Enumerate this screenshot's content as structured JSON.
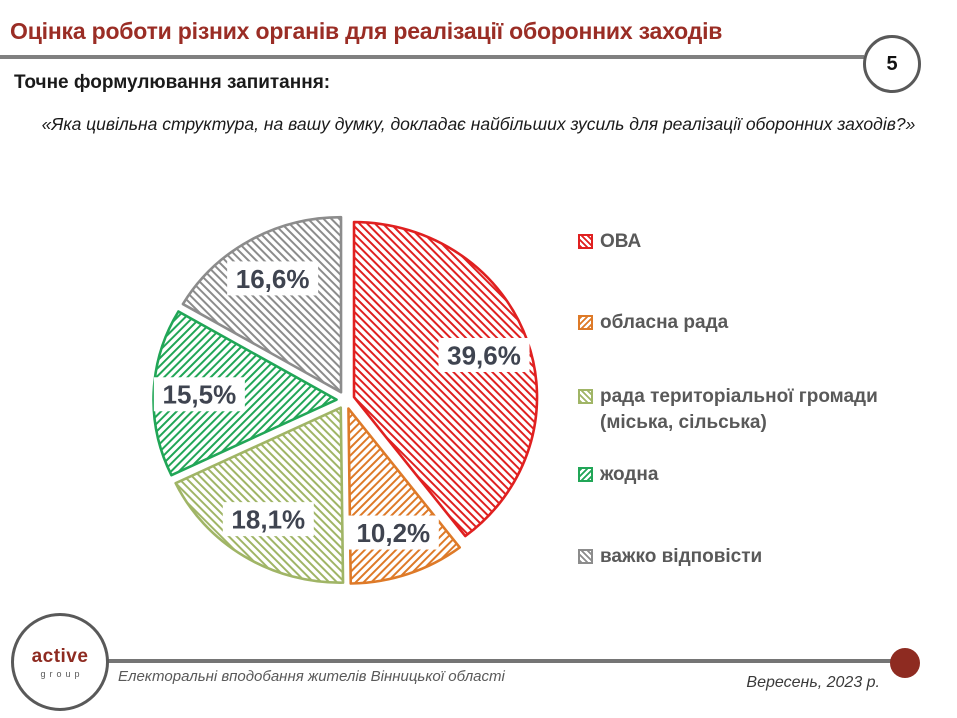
{
  "page": {
    "number": "5"
  },
  "header": {
    "title": "Оцінка роботи різних органів для реалізації оборонних заходів",
    "question_label": "Точне формулювання запитання:",
    "question": "«Яка цивільна структура, на вашу думку, докладає найбільших зусиль для реалізації оборонних заходів?»"
  },
  "chart_data": {
    "type": "pie",
    "title": "Оцінка роботи різних органів для реалізації оборонних заходів",
    "start_angle_deg": 0,
    "direction": "clockwise",
    "legend_position": "right",
    "exploded": true,
    "label_color": "#3F4450",
    "slices": [
      {
        "label": "ОВА",
        "value": 39.6,
        "display": "39,6%",
        "color": "#E02020",
        "hatch": "backslash"
      },
      {
        "label": "обласна рада",
        "value": 10.2,
        "display": "10,2%",
        "color": "#DE7A28",
        "hatch": "slash"
      },
      {
        "label": "рада територіальної громади (міська, сільська)",
        "value": 18.1,
        "display": "18,1%",
        "color": "#A0B566",
        "hatch": "backslash"
      },
      {
        "label": "жодна",
        "value": 15.5,
        "display": "15,5%",
        "color": "#21A657",
        "hatch": "slash"
      },
      {
        "label": "важко відповісти",
        "value": 16.6,
        "display": "16,6%",
        "color": "#8C8C8C",
        "hatch": "backslash"
      }
    ]
  },
  "footer": {
    "logo_top": "active",
    "logo_bottom": "group",
    "caption": "Електоральні вподобання жителів Вінницької області",
    "date": "Вересень, 2023 р."
  },
  "colors": {
    "title": "#9A2D25",
    "divider": "#808080",
    "legend_text": "#595959",
    "brand_red": "#8E2B21"
  }
}
